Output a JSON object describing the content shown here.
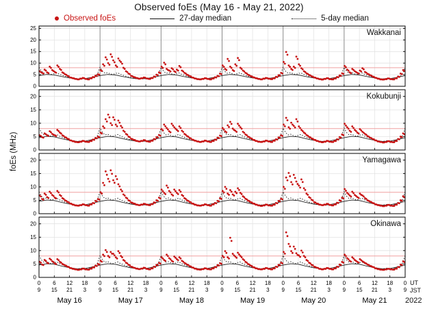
{
  "title": "Observed foEs (May 16 - May 21, 2022)",
  "legend": [
    {
      "label": "Observed foEs",
      "marker": "dot",
      "color": "#c81414"
    },
    {
      "label": "27-day median",
      "marker": "solid-line",
      "color": "#111111"
    },
    {
      "label": "5-day median",
      "marker": "dotted-line",
      "color": "#111111"
    }
  ],
  "axis": {
    "ylabel": "foEs (MHz)",
    "ut_label": "UT",
    "jst_label": "JST",
    "year_label": "2022",
    "days": [
      "May 16",
      "May 17",
      "May 18",
      "May 19",
      "May 20",
      "May 21"
    ],
    "num_days": 6,
    "hours_per_day": 24,
    "ut_tick_pattern": [
      "0",
      "6",
      "12",
      "18"
    ],
    "jst_tick_pattern": [
      "9",
      "15",
      "21",
      "3"
    ],
    "ut_final_tick": "0",
    "jst_final_tick": "9",
    "threshold_mhz": 8,
    "threshold_color": "#f0a0a0",
    "day_gridline_color": "#8a8a8a",
    "minor_gridline_color": "#e0e0e0"
  },
  "chart_data": {
    "type": "scatter",
    "x_unit": "hours since May 16 00:00 UT",
    "x_range": [
      0,
      144
    ],
    "median27_daily_pattern_3h": [
      4.6,
      5.1,
      4.9,
      4.2,
      3.6,
      3.2,
      3.3,
      3.9
    ],
    "median5_daily_pattern_1h": [
      8.2,
      6.5,
      5.6,
      5.9,
      5.4,
      5.1,
      5.5,
      5.8,
      5.2,
      4.8,
      4.4,
      4.1,
      3.8,
      3.5,
      3.3,
      3.2,
      3.3,
      3.5,
      3.3,
      3.2,
      3.4,
      3.7,
      4.2,
      5.4
    ],
    "panels": [
      {
        "station": "Wakkanai",
        "ylim": [
          0,
          25
        ],
        "yticks": [
          0,
          5,
          10,
          15,
          20,
          25
        ],
        "observed_hourly": [
          6.5,
          5.8,
          7.2,
          6.0,
          8.5,
          7.0,
          6.2,
          9.0,
          7.5,
          6.0,
          5.2,
          4.5,
          3.8,
          3.5,
          3.2,
          3.0,
          3.3,
          3.6,
          3.2,
          3.0,
          3.5,
          4.0,
          4.6,
          5.2,
          7.0,
          9.5,
          12.5,
          10.0,
          13.8,
          11.2,
          9.0,
          12.0,
          10.5,
          8.0,
          6.5,
          5.5,
          4.5,
          4.0,
          3.6,
          3.3,
          3.5,
          3.8,
          3.4,
          3.2,
          3.6,
          4.2,
          5.0,
          6.0,
          8.5,
          10.2,
          7.5,
          6.8,
          7.8,
          6.5,
          7.2,
          8.8,
          6.8,
          5.8,
          5.0,
          4.4,
          3.8,
          3.4,
          3.1,
          3.0,
          3.2,
          3.5,
          3.2,
          3.0,
          3.4,
          3.9,
          4.5,
          5.5,
          9.0,
          7.5,
          11.8,
          8.5,
          7.0,
          9.5,
          12.2,
          8.0,
          6.8,
          5.8,
          5.0,
          4.4,
          3.9,
          3.5,
          3.2,
          3.0,
          3.3,
          3.6,
          3.3,
          3.1,
          3.5,
          4.1,
          4.8,
          5.8,
          10.5,
          14.8,
          9.0,
          7.5,
          8.5,
          12.8,
          9.5,
          7.8,
          6.5,
          5.6,
          4.9,
          4.3,
          3.8,
          3.4,
          3.1,
          2.9,
          3.2,
          3.5,
          3.1,
          3.0,
          3.4,
          4.0,
          4.7,
          5.6,
          8.8,
          7.2,
          6.0,
          7.5,
          6.5,
          5.8,
          6.8,
          7.8,
          6.2,
          5.4,
          4.8,
          4.2,
          3.7,
          3.3,
          3.0,
          2.9,
          3.1,
          3.4,
          3.1,
          3.0,
          3.5,
          4.2,
          5.5,
          7.0
        ]
      },
      {
        "station": "Kokubunji",
        "ylim": [
          0,
          20
        ],
        "yticks": [
          0,
          5,
          10,
          15,
          20
        ],
        "observed_hourly": [
          5.5,
          4.8,
          6.2,
          5.5,
          7.0,
          6.0,
          5.5,
          7.5,
          6.5,
          5.5,
          4.8,
          4.2,
          3.6,
          3.3,
          3.0,
          2.9,
          3.1,
          3.4,
          3.1,
          3.0,
          3.4,
          3.9,
          4.5,
          5.0,
          6.5,
          8.8,
          11.5,
          13.2,
          10.0,
          12.2,
          9.5,
          11.0,
          9.0,
          7.2,
          6.0,
          5.0,
          4.2,
          3.8,
          3.4,
          3.2,
          3.4,
          3.7,
          3.3,
          3.1,
          3.5,
          4.1,
          4.8,
          5.6,
          7.8,
          9.5,
          8.2,
          7.0,
          9.8,
          8.5,
          7.5,
          8.8,
          7.2,
          6.0,
          5.2,
          4.5,
          3.9,
          3.5,
          3.2,
          3.0,
          3.2,
          3.5,
          3.2,
          3.0,
          3.4,
          3.9,
          4.6,
          5.4,
          8.2,
          7.0,
          9.2,
          10.5,
          8.0,
          7.2,
          9.8,
          8.5,
          6.8,
          5.8,
          5.0,
          4.4,
          3.8,
          3.4,
          3.1,
          3.0,
          3.2,
          3.5,
          3.2,
          3.0,
          3.5,
          4.0,
          4.7,
          5.5,
          9.5,
          12.0,
          8.5,
          10.2,
          9.0,
          11.5,
          8.8,
          7.5,
          6.5,
          5.6,
          4.9,
          4.3,
          3.8,
          3.4,
          3.1,
          2.9,
          3.1,
          3.4,
          3.1,
          3.0,
          3.4,
          4.0,
          4.8,
          5.8,
          9.8,
          8.5,
          7.2,
          8.8,
          7.5,
          6.5,
          7.8,
          6.8,
          6.0,
          5.2,
          4.6,
          4.1,
          3.6,
          3.2,
          3.0,
          2.8,
          3.0,
          3.3,
          3.0,
          2.9,
          3.4,
          4.1,
          5.0,
          6.2
        ]
      },
      {
        "station": "Yamagawa",
        "ylim": [
          0,
          20
        ],
        "yticks": [
          0,
          5,
          10,
          15,
          20
        ],
        "observed_hourly": [
          6.8,
          5.5,
          7.5,
          6.2,
          8.2,
          7.0,
          6.0,
          8.5,
          7.0,
          5.8,
          5.0,
          4.4,
          3.8,
          3.4,
          3.1,
          3.0,
          3.2,
          3.5,
          3.2,
          3.0,
          3.5,
          4.0,
          4.8,
          5.5,
          8.0,
          11.5,
          15.8,
          13.0,
          16.2,
          12.5,
          14.0,
          11.0,
          9.0,
          7.2,
          6.0,
          5.0,
          4.2,
          3.8,
          3.4,
          3.2,
          3.4,
          3.7,
          3.4,
          3.2,
          3.6,
          4.2,
          5.0,
          6.0,
          9.0,
          7.8,
          10.5,
          8.5,
          7.2,
          9.0,
          7.8,
          8.8,
          7.0,
          5.8,
          5.0,
          4.4,
          3.8,
          3.4,
          3.1,
          3.0,
          3.2,
          3.5,
          3.2,
          3.0,
          3.5,
          4.0,
          4.8,
          5.8,
          8.5,
          10.0,
          7.5,
          8.8,
          7.2,
          8.2,
          9.5,
          7.8,
          6.5,
          5.6,
          4.9,
          4.3,
          3.8,
          3.4,
          3.1,
          2.9,
          3.1,
          3.4,
          3.1,
          3.0,
          3.4,
          4.0,
          4.8,
          5.6,
          10.0,
          13.5,
          15.2,
          11.8,
          14.5,
          12.0,
          10.5,
          12.8,
          9.5,
          7.5,
          6.2,
          5.2,
          4.3,
          3.8,
          3.4,
          3.2,
          3.4,
          3.7,
          3.3,
          3.1,
          3.5,
          4.1,
          5.0,
          6.0,
          9.2,
          7.8,
          6.8,
          8.2,
          7.0,
          6.2,
          7.5,
          6.8,
          5.8,
          5.0,
          4.5,
          4.0,
          3.5,
          3.2,
          3.0,
          2.8,
          3.0,
          3.3,
          3.0,
          2.9,
          3.4,
          4.0,
          5.0,
          6.5
        ]
      },
      {
        "station": "Okinawa",
        "ylim": [
          0,
          20
        ],
        "yticks": [
          0,
          5,
          10,
          15,
          20
        ],
        "observed_hourly": [
          5.8,
          4.8,
          6.5,
          5.5,
          7.0,
          6.0,
          5.2,
          6.8,
          5.8,
          5.0,
          4.5,
          4.0,
          3.5,
          3.2,
          3.0,
          2.8,
          3.0,
          3.3,
          3.0,
          2.9,
          3.3,
          3.8,
          4.4,
          5.0,
          6.2,
          8.5,
          10.2,
          8.0,
          9.5,
          8.8,
          7.5,
          9.8,
          8.0,
          6.5,
          5.5,
          4.7,
          4.0,
          3.6,
          3.3,
          3.1,
          3.3,
          3.6,
          3.2,
          3.0,
          3.4,
          4.0,
          4.7,
          5.4,
          7.5,
          6.5,
          8.5,
          7.2,
          6.2,
          7.8,
          6.8,
          7.5,
          6.2,
          5.4,
          4.8,
          4.2,
          3.7,
          3.3,
          3.0,
          2.9,
          3.1,
          3.4,
          3.1,
          3.0,
          3.4,
          3.9,
          4.6,
          5.3,
          8.0,
          9.8,
          7.5,
          14.8,
          8.8,
          7.8,
          9.2,
          8.0,
          6.8,
          5.8,
          5.0,
          4.4,
          3.8,
          3.4,
          3.1,
          3.0,
          3.2,
          3.5,
          3.2,
          3.0,
          3.4,
          4.0,
          4.7,
          5.5,
          9.5,
          16.8,
          12.5,
          9.8,
          11.5,
          9.0,
          8.2,
          10.0,
          8.0,
          6.5,
          5.5,
          4.7,
          4.0,
          3.6,
          3.2,
          3.0,
          3.2,
          3.5,
          3.2,
          3.0,
          3.4,
          4.0,
          4.8,
          5.8,
          8.5,
          7.2,
          6.2,
          7.5,
          6.5,
          5.8,
          6.8,
          6.0,
          5.4,
          4.8,
          4.3,
          3.9,
          3.4,
          3.1,
          2.9,
          2.8,
          3.0,
          3.2,
          3.0,
          2.9,
          3.3,
          3.9,
          4.8,
          6.0
        ]
      }
    ]
  }
}
